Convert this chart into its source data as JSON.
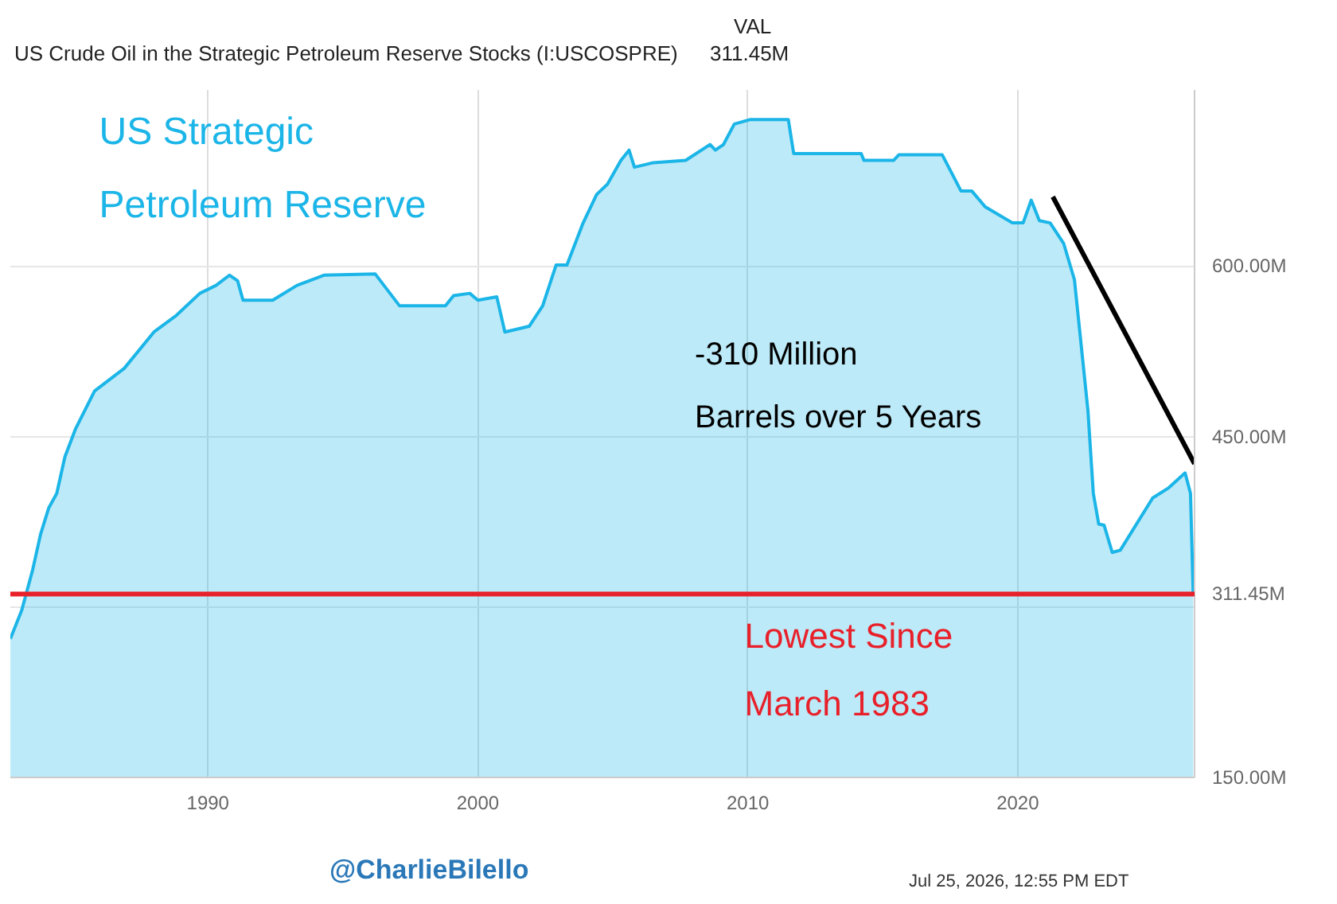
{
  "chart_data": {
    "type": "area",
    "title": "US Crude Oil in the Strategic Petroleum Reserve Stocks (I:USCOSPRE)",
    "xlim": [
      1982.68,
      2026.55
    ],
    "xticks": [
      1990,
      2000,
      2010,
      2020
    ],
    "ylim": [
      150,
      755
    ],
    "yticks": [
      {
        "value": 150,
        "label": "150.00M"
      },
      {
        "value": 300,
        "label": null
      },
      {
        "value": 450,
        "label": "450.00M"
      },
      {
        "value": 600,
        "label": "600.00M"
      }
    ],
    "grid": true,
    "series": [
      {
        "color": "#1bb5e8",
        "x": [
          1982.68,
          1983.1,
          1983.5,
          1983.8,
          1984.1,
          1984.4,
          1984.7,
          1985.1,
          1985.8,
          1986.9,
          1988.0,
          1988.8,
          1989.7,
          1990.3,
          1990.8,
          1991.1,
          1991.3,
          1992.4,
          1993.3,
          1994.3,
          1996.2,
          1997.1,
          1998.8,
          1999.1,
          1999.7,
          2000.0,
          2000.7,
          2001.0,
          2001.9,
          2002.4,
          2002.9,
          2003.3,
          2003.9,
          2004.4,
          2004.8,
          2005.3,
          2005.6,
          2005.8,
          2006.5,
          2007.7,
          2008.6,
          2008.8,
          2009.1,
          2009.5,
          2010.1,
          2011.5,
          2011.7,
          2014.2,
          2014.3,
          2015.4,
          2015.6,
          2017.2,
          2017.9,
          2018.3,
          2018.8,
          2019.8,
          2020.2,
          2020.5,
          2020.8,
          2021.2,
          2021.7,
          2022.1,
          2022.3,
          2022.6,
          2022.8,
          2023.0,
          2023.2,
          2023.5,
          2023.8,
          2025.0,
          2025.6,
          2026.2,
          2026.4,
          2026.5
        ],
        "values": [
          272,
          297,
          332,
          364,
          387,
          400,
          432,
          457,
          490,
          510,
          542,
          556,
          576,
          583,
          592,
          587,
          570,
          570,
          583,
          592,
          593,
          565,
          565,
          574,
          576,
          570,
          573,
          542,
          547,
          565,
          601,
          601,
          638,
          663,
          672,
          693,
          702,
          687,
          691,
          693,
          707,
          702,
          707,
          725,
          729,
          729,
          699,
          699,
          693,
          693,
          698,
          698,
          666,
          666,
          652,
          638,
          638,
          658,
          640,
          638,
          620,
          588,
          542,
          473,
          400,
          373,
          372,
          348,
          350,
          396,
          405,
          418,
          400,
          311.45
        ],
        "value_labels": [
          null,
          null,
          null,
          null,
          null,
          null,
          null,
          null,
          null,
          null,
          null,
          null,
          null,
          null,
          null,
          null,
          null,
          null,
          null,
          null,
          null,
          null,
          null,
          null,
          null,
          null,
          null,
          null,
          null,
          null,
          null,
          null,
          null,
          null,
          null,
          null,
          null,
          null,
          null,
          null,
          null,
          null,
          null,
          null,
          null,
          null,
          null,
          null,
          null,
          null,
          null,
          null,
          null,
          null,
          null,
          null,
          null,
          null,
          null,
          null,
          null,
          null,
          null,
          null,
          null,
          null,
          null,
          null,
          null,
          null,
          null,
          null,
          null,
          "311.45M"
        ]
      },
      {
        "type": "line",
        "color": "#000000",
        "x": [
          2021.3,
          2026.55
        ],
        "values": [
          661,
          426
        ]
      }
    ],
    "ref_lines": [
      {
        "axis": "y",
        "value": 311.45,
        "label": "Lowest Since\nMarch 1983",
        "color": "#e8202a"
      }
    ],
    "annotations": [
      "VAL",
      "311.45M",
      "US Strategic\nPetroleum Reserve",
      "-310 Million\nBarrels over 5 Years",
      "@CharlieBilello",
      "Jul 25, 2026, 12:55 PM EDT"
    ]
  }
}
